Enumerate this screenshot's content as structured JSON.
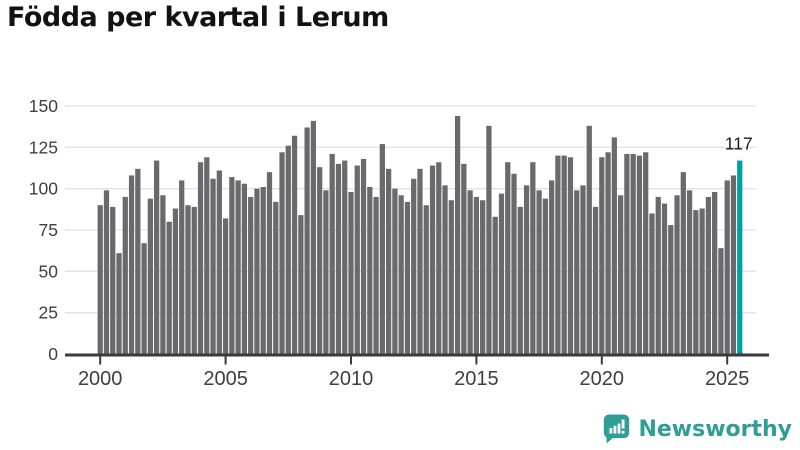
{
  "title": "Födda per kvartal i Lerum",
  "chart_data": {
    "type": "bar",
    "x_start": "2000 Q1",
    "x_end": "2025 Q3",
    "quarters_per_year": 4,
    "start_year": 2000,
    "values": [
      90,
      99,
      89,
      61,
      95,
      108,
      112,
      67,
      94,
      117,
      96,
      80,
      88,
      105,
      90,
      89,
      116,
      119,
      106,
      111,
      82,
      107,
      105,
      103,
      95,
      100,
      101,
      110,
      92,
      122,
      126,
      132,
      84,
      137,
      141,
      113,
      99,
      121,
      115,
      117,
      98,
      114,
      118,
      101,
      95,
      127,
      112,
      100,
      96,
      92,
      106,
      112,
      90,
      114,
      116,
      102,
      93,
      144,
      115,
      99,
      95,
      93,
      138,
      83,
      97,
      116,
      109,
      89,
      102,
      116,
      99,
      94,
      105,
      120,
      120,
      119,
      99,
      102,
      138,
      89,
      119,
      122,
      131,
      96,
      121,
      121,
      120,
      122,
      85,
      95,
      91,
      78,
      96,
      110,
      99,
      87,
      88,
      95,
      98,
      64,
      105,
      108,
      117
    ],
    "highlight_index": 102,
    "highlight_label": "117",
    "ylim": [
      0,
      150
    ],
    "yticks": [
      0,
      25,
      50,
      75,
      100,
      125,
      150
    ],
    "xticks": [
      {
        "label": "2000",
        "index": 0
      },
      {
        "label": "2005",
        "index": 20
      },
      {
        "label": "2010",
        "index": 40
      },
      {
        "label": "2015",
        "index": 60
      },
      {
        "label": "2020",
        "index": 80
      },
      {
        "label": "2025",
        "index": 100
      }
    ],
    "grid": true,
    "legend": "none",
    "colors": {
      "bar": "#6a6a6e",
      "highlight": "#009ea6",
      "axis": "#3a3a3a",
      "grid": "#e3e3e3",
      "tick_label": "#3f3f3f",
      "annotation": "#1a1a1a"
    }
  },
  "footer": {
    "brand": "Newsworthy",
    "brand_color": "#2f9e94"
  }
}
